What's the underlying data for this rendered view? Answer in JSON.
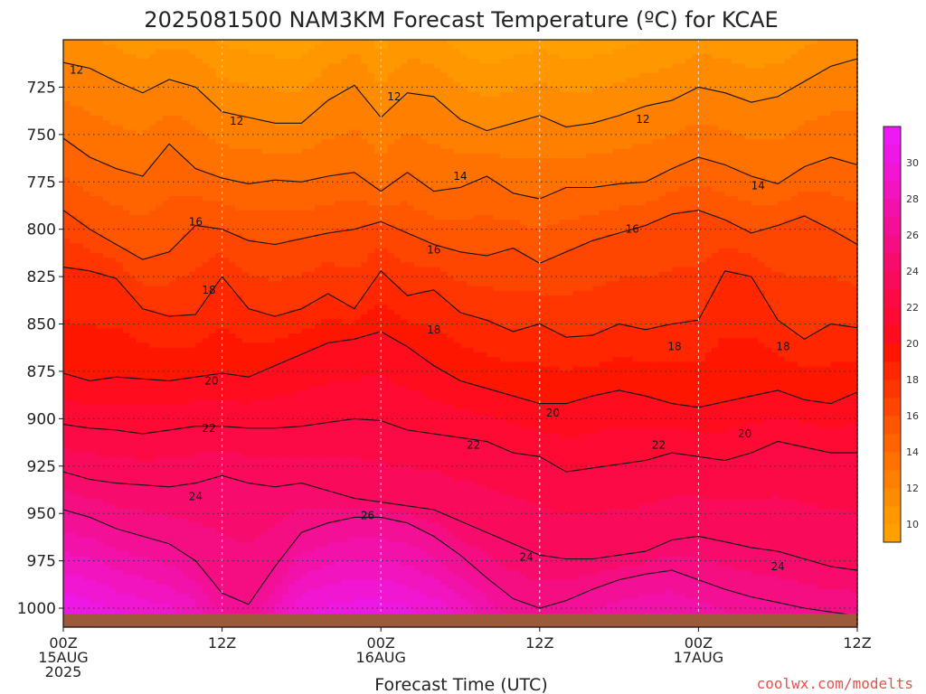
{
  "title": "2025081500 NAM3KM Forecast Temperature (ºC) for KCAE",
  "credit": "coolwx.com/modelts",
  "colors": {
    "credit": "#e8504a",
    "ground": "#9c5a3a",
    "contour": "#111111",
    "grid": "#333333"
  },
  "chart_data": {
    "type": "heatmap",
    "title": "2025081500 NAM3KM Forecast Temperature (ºC) for KCAE",
    "xlabel": "Forecast Time (UTC)",
    "ylabel": "",
    "x_range_hours": [
      0,
      60
    ],
    "y_range_hPa": [
      700,
      1010
    ],
    "y_reversed": true,
    "grid": true,
    "x_ticks": [
      {
        "hour": 0,
        "line1": "00Z",
        "line2": "15AUG",
        "line3": "2025"
      },
      {
        "hour": 12,
        "line1": "12Z",
        "line2": "",
        "line3": ""
      },
      {
        "hour": 24,
        "line1": "00Z",
        "line2": "16AUG",
        "line3": ""
      },
      {
        "hour": 36,
        "line1": "12Z",
        "line2": "",
        "line3": ""
      },
      {
        "hour": 48,
        "line1": "00Z",
        "line2": "17AUG",
        "line3": ""
      },
      {
        "hour": 60,
        "line1": "12Z",
        "line2": "",
        "line3": ""
      }
    ],
    "y_ticks": [
      "725",
      "750",
      "775",
      "800",
      "825",
      "850",
      "875",
      "900",
      "925",
      "950",
      "975",
      "1000"
    ],
    "colorbar": {
      "labels": [
        "10",
        "12",
        "14",
        "16",
        "18",
        "20",
        "22",
        "24",
        "26",
        "28",
        "30"
      ],
      "levels": [
        9,
        10,
        11,
        12,
        13,
        14,
        15,
        16,
        17,
        18,
        19,
        20,
        21,
        22,
        23,
        24,
        25,
        26,
        27,
        28,
        29,
        30,
        31,
        32
      ],
      "colors": [
        "#ffa000",
        "#ff9700",
        "#ff8c00",
        "#ff8000",
        "#ff7200",
        "#ff6400",
        "#ff5600",
        "#ff4600",
        "#ff3600",
        "#ff2600",
        "#ff1600",
        "#ff0c1e",
        "#ff0a32",
        "#fc0a46",
        "#fa0a5a",
        "#f70c6e",
        "#f50e82",
        "#f31096",
        "#f212aa",
        "#f214be",
        "#f016d2",
        "#ee18e6",
        "#ee1af4"
      ],
      "placement": "right"
    },
    "contours": [
      {
        "value": 12,
        "hours": [
          0,
          2,
          4,
          6,
          8,
          10,
          12,
          14,
          16,
          18,
          20,
          22,
          24,
          26,
          28,
          30,
          32,
          34,
          36,
          38,
          40,
          42,
          44,
          46,
          48,
          50,
          52,
          54,
          56,
          58,
          60
        ],
        "pressures": [
          712,
          715,
          722,
          728,
          721,
          725,
          738,
          741,
          744,
          744,
          732,
          724,
          741,
          728,
          730,
          742,
          748,
          744,
          740,
          746,
          744,
          740,
          735,
          732,
          725,
          728,
          733,
          730,
          722,
          714,
          710
        ]
      },
      {
        "value": 14,
        "hours": [
          0,
          2,
          4,
          6,
          8,
          10,
          12,
          14,
          16,
          18,
          20,
          22,
          24,
          26,
          28,
          30,
          32,
          34,
          36,
          38,
          40,
          42,
          44,
          46,
          48,
          50,
          52,
          54,
          56,
          58,
          60
        ],
        "pressures": [
          752,
          762,
          768,
          772,
          755,
          768,
          773,
          776,
          774,
          775,
          772,
          770,
          780,
          770,
          780,
          778,
          772,
          781,
          784,
          778,
          778,
          776,
          775,
          768,
          762,
          766,
          772,
          776,
          767,
          762,
          766
        ]
      },
      {
        "value": 16,
        "hours": [
          0,
          2,
          4,
          6,
          8,
          10,
          12,
          14,
          16,
          18,
          20,
          22,
          24,
          26,
          28,
          30,
          32,
          34,
          36,
          38,
          40,
          42,
          44,
          46,
          48,
          50,
          52,
          54,
          56,
          58,
          60
        ],
        "pressures": [
          790,
          800,
          808,
          816,
          812,
          798,
          800,
          806,
          808,
          805,
          802,
          800,
          796,
          802,
          808,
          812,
          814,
          810,
          818,
          812,
          806,
          802,
          798,
          792,
          790,
          795,
          802,
          798,
          793,
          800,
          808
        ]
      },
      {
        "value": 18,
        "hours": [
          0,
          2,
          4,
          6,
          8,
          10,
          12,
          14,
          16,
          18,
          20,
          22,
          24,
          26,
          28,
          30,
          32,
          34,
          36,
          38,
          40,
          42,
          44,
          46,
          48,
          50,
          52,
          54,
          56,
          58,
          60
        ],
        "pressures": [
          820,
          822,
          826,
          842,
          846,
          845,
          825,
          842,
          846,
          842,
          834,
          842,
          822,
          835,
          832,
          844,
          848,
          854,
          850,
          857,
          856,
          850,
          853,
          850,
          848,
          822,
          825,
          848,
          858,
          850,
          852
        ]
      },
      {
        "value": 20,
        "hours": [
          0,
          2,
          4,
          6,
          8,
          10,
          12,
          14,
          16,
          18,
          20,
          22,
          24,
          26,
          28,
          30,
          32,
          34,
          36,
          38,
          40,
          42,
          44,
          46,
          48,
          50,
          52,
          54,
          56,
          58,
          60
        ],
        "pressures": [
          876,
          880,
          878,
          879,
          880,
          878,
          876,
          878,
          872,
          866,
          860,
          858,
          854,
          862,
          872,
          880,
          884,
          888,
          892,
          892,
          888,
          885,
          888,
          892,
          894,
          891,
          888,
          885,
          890,
          892,
          886
        ]
      },
      {
        "value": 22,
        "hours": [
          0,
          2,
          4,
          6,
          8,
          10,
          12,
          14,
          16,
          18,
          20,
          22,
          24,
          26,
          28,
          30,
          32,
          34,
          36,
          38,
          40,
          42,
          44,
          46,
          48,
          50,
          52,
          54,
          56,
          58,
          60
        ],
        "pressures": [
          903,
          905,
          906,
          908,
          906,
          904,
          904,
          905,
          905,
          904,
          902,
          900,
          901,
          906,
          908,
          910,
          912,
          918,
          920,
          928,
          926,
          924,
          922,
          918,
          920,
          922,
          918,
          912,
          915,
          918,
          918
        ]
      },
      {
        "value": 24,
        "hours": [
          0,
          2,
          4,
          6,
          8,
          10,
          12,
          14,
          16,
          18,
          20,
          22,
          24,
          26,
          28,
          30,
          32,
          34,
          36,
          38,
          40,
          42,
          44,
          46,
          48,
          50,
          52,
          54,
          56,
          58,
          60
        ],
        "pressures": [
          928,
          932,
          934,
          935,
          936,
          934,
          930,
          934,
          936,
          934,
          938,
          942,
          944,
          946,
          948,
          954,
          960,
          966,
          972,
          974,
          974,
          972,
          970,
          964,
          962,
          965,
          968,
          970,
          974,
          978,
          980
        ]
      },
      {
        "value": 26,
        "hours": [
          0,
          2,
          4,
          6,
          8,
          10,
          12,
          14,
          16,
          18,
          20,
          22,
          24,
          26,
          28,
          30,
          32,
          34,
          36,
          38,
          40,
          42,
          44,
          46,
          48,
          50,
          52,
          54,
          56,
          58,
          60
        ],
        "pressures": [
          948,
          952,
          958,
          962,
          966,
          975,
          992,
          998,
          978,
          960,
          955,
          952,
          952,
          955,
          962,
          972,
          984,
          995,
          1000,
          996,
          990,
          985,
          982,
          980,
          985,
          990,
          994,
          997,
          1000,
          1002,
          1004
        ]
      }
    ],
    "contour_labels": [
      {
        "value": "12",
        "hour": 1.0,
        "p": 716
      },
      {
        "value": "12",
        "hour": 13.1,
        "p": 743
      },
      {
        "value": "12",
        "hour": 25.0,
        "p": 730
      },
      {
        "value": "12",
        "hour": 43.8,
        "p": 742
      },
      {
        "value": "14",
        "hour": 30.0,
        "p": 772
      },
      {
        "value": "14",
        "hour": 52.5,
        "p": 777
      },
      {
        "value": "16",
        "hour": 10.0,
        "p": 796
      },
      {
        "value": "16",
        "hour": 28.0,
        "p": 811
      },
      {
        "value": "16",
        "hour": 43.0,
        "p": 800
      },
      {
        "value": "18",
        "hour": 11.0,
        "p": 832
      },
      {
        "value": "18",
        "hour": 28.0,
        "p": 853
      },
      {
        "value": "18",
        "hour": 46.2,
        "p": 862
      },
      {
        "value": "18",
        "hour": 54.4,
        "p": 862
      },
      {
        "value": "20",
        "hour": 11.2,
        "p": 880
      },
      {
        "value": "20",
        "hour": 37.0,
        "p": 897
      },
      {
        "value": "20",
        "hour": 51.5,
        "p": 908
      },
      {
        "value": "22",
        "hour": 11.0,
        "p": 905
      },
      {
        "value": "22",
        "hour": 31.0,
        "p": 914
      },
      {
        "value": "22",
        "hour": 45.0,
        "p": 914
      },
      {
        "value": "24",
        "hour": 10.0,
        "p": 941
      },
      {
        "value": "24",
        "hour": 35.0,
        "p": 973
      },
      {
        "value": "24",
        "hour": 54.0,
        "p": 978
      },
      {
        "value": "26",
        "hour": 23.0,
        "p": 951
      }
    ]
  }
}
